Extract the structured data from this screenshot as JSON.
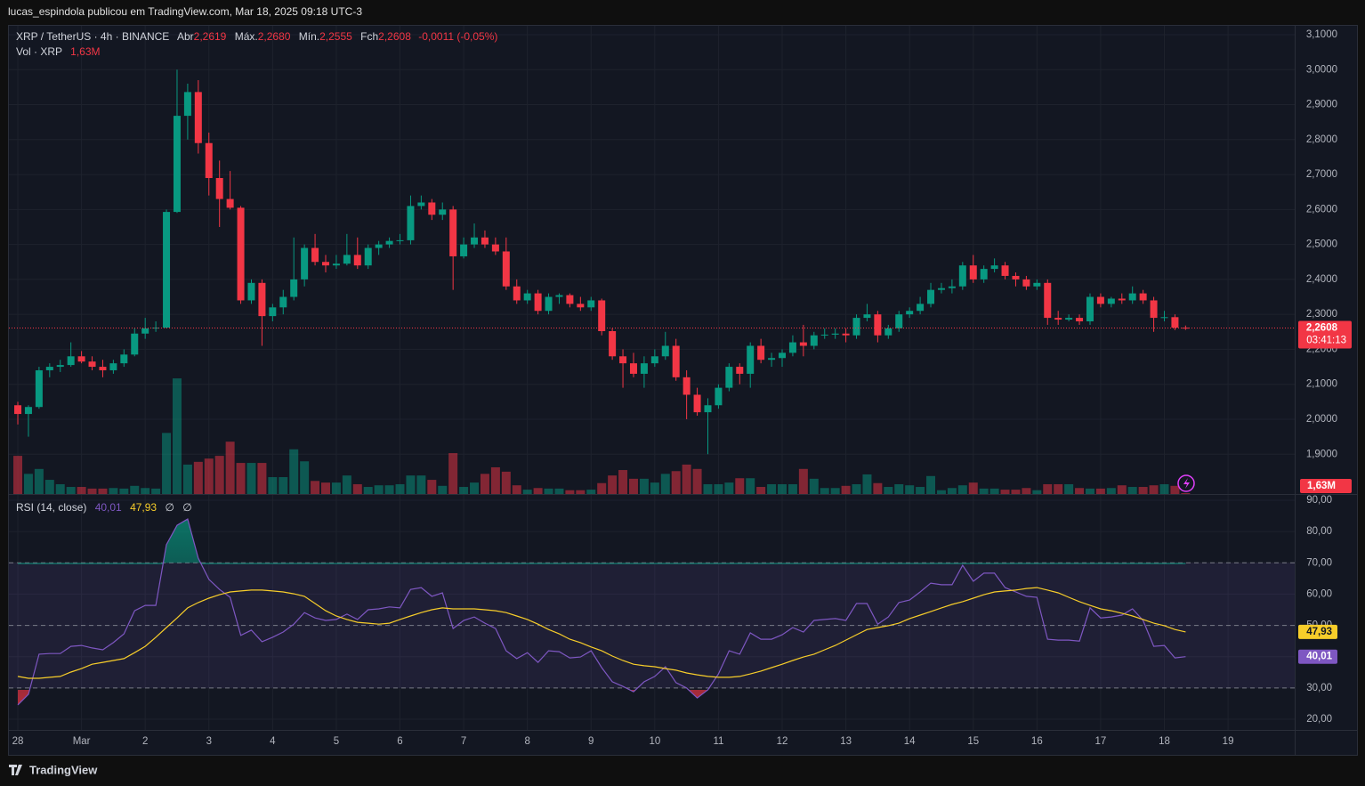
{
  "header": {
    "text": "lucas_espindola publicou em TradingView.com, Mar 18, 2025 09:18 UTC-3",
    "brand": "TradingView"
  },
  "chart_data": [
    {
      "type": "candlestick",
      "title": "XRP / TetherUS · 4h · BINANCE",
      "ohlc_names": [
        "Abr",
        "Máx.",
        "Mín.",
        "Fch"
      ],
      "ohlc_labels": [
        "2,2619",
        "2,2680",
        "2,2555",
        "2,2608"
      ],
      "change_label": "-0,0011 (-0,05%)",
      "countdown": "03:41:13",
      "up_color": "#089981",
      "down_color": "#f23645",
      "ylim": [
        1.786,
        3.128
      ],
      "yticks": [
        {
          "value": 1.9,
          "label": "1,9000"
        },
        {
          "value": 2.0,
          "label": "2,0000"
        },
        {
          "value": 2.1,
          "label": "2,1000"
        },
        {
          "value": 2.2,
          "label": "2,2000"
        },
        {
          "value": 2.3,
          "label": "2,3000"
        },
        {
          "value": 2.4,
          "label": "2,4000"
        },
        {
          "value": 2.5,
          "label": "2,5000"
        },
        {
          "value": 2.6,
          "label": "2,6000"
        },
        {
          "value": 2.7,
          "label": "2,7000"
        },
        {
          "value": 2.8,
          "label": "2,8000"
        },
        {
          "value": 2.9,
          "label": "2,9000"
        },
        {
          "value": 3.0,
          "label": "3,0000"
        },
        {
          "value": 3.1,
          "label": "3,1000"
        }
      ],
      "xlim": [
        -0.84,
        120.28
      ],
      "xticks": [
        {
          "value": 0,
          "label": "28"
        },
        {
          "value": 6,
          "label": "Mar"
        },
        {
          "value": 12,
          "label": "2"
        },
        {
          "value": 18,
          "label": "3"
        },
        {
          "value": 24,
          "label": "4"
        },
        {
          "value": 30,
          "label": "5"
        },
        {
          "value": 36,
          "label": "6"
        },
        {
          "value": 42,
          "label": "7"
        },
        {
          "value": 48,
          "label": "8"
        },
        {
          "value": 54,
          "label": "9"
        },
        {
          "value": 60,
          "label": "10"
        },
        {
          "value": 66,
          "label": "11"
        },
        {
          "value": 72,
          "label": "12"
        },
        {
          "value": 78,
          "label": "13"
        },
        {
          "value": 84,
          "label": "14"
        },
        {
          "value": 90,
          "label": "15"
        },
        {
          "value": 96,
          "label": "16"
        },
        {
          "value": 102,
          "label": "17"
        },
        {
          "value": 108,
          "label": "18"
        },
        {
          "value": 114,
          "label": "19"
        }
      ],
      "candles": [
        [
          2.04,
          2.05,
          1.985,
          2.015
        ],
        [
          2.015,
          2.04,
          1.95,
          2.035
        ],
        [
          2.035,
          2.15,
          2.03,
          2.14
        ],
        [
          2.14,
          2.16,
          2.12,
          2.15
        ],
        [
          2.15,
          2.17,
          2.135,
          2.155
        ],
        [
          2.155,
          2.22,
          2.15,
          2.18
        ],
        [
          2.18,
          2.195,
          2.16,
          2.165
        ],
        [
          2.165,
          2.18,
          2.14,
          2.15
        ],
        [
          2.15,
          2.17,
          2.12,
          2.14
        ],
        [
          2.14,
          2.17,
          2.13,
          2.16
        ],
        [
          2.16,
          2.2,
          2.15,
          2.185
        ],
        [
          2.185,
          2.26,
          2.18,
          2.245
        ],
        [
          2.245,
          2.29,
          2.23,
          2.26
        ],
        [
          2.26,
          2.28,
          2.25,
          2.262
        ],
        [
          2.262,
          2.6,
          2.26,
          2.593
        ],
        [
          2.593,
          3.0,
          2.59,
          2.868
        ],
        [
          2.868,
          2.96,
          2.8,
          2.936
        ],
        [
          2.936,
          2.97,
          2.76,
          2.79
        ],
        [
          2.79,
          2.82,
          2.64,
          2.69
        ],
        [
          2.69,
          2.74,
          2.55,
          2.63
        ],
        [
          2.63,
          2.71,
          2.6,
          2.605
        ],
        [
          2.605,
          2.61,
          2.33,
          2.34
        ],
        [
          2.34,
          2.4,
          2.33,
          2.39
        ],
        [
          2.39,
          2.4,
          2.21,
          2.295
        ],
        [
          2.295,
          2.33,
          2.28,
          2.32
        ],
        [
          2.32,
          2.37,
          2.3,
          2.35
        ],
        [
          2.35,
          2.52,
          2.34,
          2.4
        ],
        [
          2.4,
          2.5,
          2.38,
          2.49
        ],
        [
          2.49,
          2.53,
          2.44,
          2.45
        ],
        [
          2.45,
          2.47,
          2.42,
          2.44
        ],
        [
          2.44,
          2.47,
          2.43,
          2.445
        ],
        [
          2.445,
          2.53,
          2.44,
          2.47
        ],
        [
          2.47,
          2.52,
          2.43,
          2.44
        ],
        [
          2.44,
          2.5,
          2.43,
          2.49
        ],
        [
          2.49,
          2.51,
          2.47,
          2.5
        ],
        [
          2.5,
          2.52,
          2.49,
          2.51
        ],
        [
          2.51,
          2.53,
          2.5,
          2.512
        ],
        [
          2.512,
          2.64,
          2.5,
          2.61
        ],
        [
          2.61,
          2.64,
          2.6,
          2.62
        ],
        [
          2.62,
          2.63,
          2.57,
          2.585
        ],
        [
          2.585,
          2.62,
          2.57,
          2.6
        ],
        [
          2.6,
          2.61,
          2.37,
          2.466
        ],
        [
          2.466,
          2.52,
          2.46,
          2.5
        ],
        [
          2.5,
          2.56,
          2.49,
          2.52
        ],
        [
          2.52,
          2.54,
          2.49,
          2.5
        ],
        [
          2.5,
          2.52,
          2.47,
          2.48
        ],
        [
          2.48,
          2.52,
          2.37,
          2.38
        ],
        [
          2.38,
          2.4,
          2.33,
          2.34
        ],
        [
          2.34,
          2.37,
          2.33,
          2.36
        ],
        [
          2.36,
          2.37,
          2.3,
          2.31
        ],
        [
          2.31,
          2.36,
          2.3,
          2.35
        ],
        [
          2.35,
          2.36,
          2.33,
          2.355
        ],
        [
          2.355,
          2.36,
          2.32,
          2.33
        ],
        [
          2.33,
          2.35,
          2.31,
          2.32
        ],
        [
          2.32,
          2.35,
          2.31,
          2.34
        ],
        [
          2.34,
          2.345,
          2.24,
          2.252
        ],
        [
          2.252,
          2.26,
          2.17,
          2.18
        ],
        [
          2.18,
          2.2,
          2.09,
          2.16
        ],
        [
          2.16,
          2.19,
          2.12,
          2.13
        ],
        [
          2.13,
          2.18,
          2.09,
          2.16
        ],
        [
          2.16,
          2.2,
          2.15,
          2.18
        ],
        [
          2.18,
          2.25,
          2.17,
          2.21
        ],
        [
          2.21,
          2.23,
          2.11,
          2.12
        ],
        [
          2.12,
          2.14,
          2.0,
          2.07
        ],
        [
          2.07,
          2.09,
          2.01,
          2.02
        ],
        [
          2.02,
          2.06,
          1.9,
          2.04
        ],
        [
          2.04,
          2.1,
          2.03,
          2.09
        ],
        [
          2.09,
          2.16,
          2.08,
          2.15
        ],
        [
          2.15,
          2.16,
          2.1,
          2.13
        ],
        [
          2.13,
          2.22,
          2.09,
          2.21
        ],
        [
          2.21,
          2.23,
          2.16,
          2.17
        ],
        [
          2.17,
          2.19,
          2.15,
          2.175
        ],
        [
          2.175,
          2.2,
          2.15,
          2.19
        ],
        [
          2.19,
          2.24,
          2.18,
          2.22
        ],
        [
          2.22,
          2.27,
          2.18,
          2.21
        ],
        [
          2.21,
          2.25,
          2.2,
          2.24
        ],
        [
          2.24,
          2.26,
          2.23,
          2.242
        ],
        [
          2.242,
          2.26,
          2.23,
          2.245
        ],
        [
          2.245,
          2.26,
          2.22,
          2.24
        ],
        [
          2.24,
          2.3,
          2.23,
          2.29
        ],
        [
          2.29,
          2.33,
          2.28,
          2.3
        ],
        [
          2.3,
          2.31,
          2.22,
          2.24
        ],
        [
          2.24,
          2.27,
          2.23,
          2.26
        ],
        [
          2.26,
          2.31,
          2.25,
          2.3
        ],
        [
          2.3,
          2.32,
          2.29,
          2.31
        ],
        [
          2.31,
          2.35,
          2.3,
          2.33
        ],
        [
          2.33,
          2.39,
          2.32,
          2.37
        ],
        [
          2.37,
          2.39,
          2.36,
          2.375
        ],
        [
          2.375,
          2.4,
          2.36,
          2.38
        ],
        [
          2.38,
          2.45,
          2.37,
          2.44
        ],
        [
          2.44,
          2.47,
          2.39,
          2.4
        ],
        [
          2.4,
          2.44,
          2.39,
          2.43
        ],
        [
          2.43,
          2.46,
          2.42,
          2.44
        ],
        [
          2.44,
          2.45,
          2.4,
          2.41
        ],
        [
          2.41,
          2.42,
          2.38,
          2.4
        ],
        [
          2.4,
          2.41,
          2.37,
          2.38
        ],
        [
          2.38,
          2.4,
          2.37,
          2.39
        ],
        [
          2.39,
          2.4,
          2.27,
          2.29
        ],
        [
          2.29,
          2.31,
          2.27,
          2.285
        ],
        [
          2.285,
          2.3,
          2.28,
          2.29
        ],
        [
          2.29,
          2.3,
          2.27,
          2.28
        ],
        [
          2.28,
          2.36,
          2.27,
          2.35
        ],
        [
          2.35,
          2.36,
          2.32,
          2.33
        ],
        [
          2.33,
          2.35,
          2.32,
          2.345
        ],
        [
          2.345,
          2.36,
          2.33,
          2.34
        ],
        [
          2.34,
          2.38,
          2.33,
          2.36
        ],
        [
          2.36,
          2.37,
          2.33,
          2.34
        ],
        [
          2.34,
          2.35,
          2.25,
          2.29
        ],
        [
          2.29,
          2.31,
          2.28,
          2.292
        ],
        [
          2.292,
          2.3,
          2.255,
          2.262
        ],
        [
          2.2619,
          2.268,
          2.2555,
          2.2608
        ]
      ]
    },
    {
      "type": "bar",
      "title": "Vol · XRP",
      "current_label": "1,63M",
      "ylim": [
        0,
        860
      ],
      "values": [
        70,
        37,
        46,
        26,
        18,
        13,
        13,
        10,
        10,
        11,
        10,
        15,
        11,
        10,
        112,
        212,
        54,
        59,
        65,
        70,
        96,
        57,
        57,
        57,
        31,
        31,
        82,
        60,
        24,
        21,
        21,
        34,
        18,
        13,
        16,
        16,
        18,
        34,
        34,
        26,
        15,
        75,
        13,
        21,
        37,
        49,
        41,
        16,
        8,
        11,
        10,
        10,
        7,
        7,
        8,
        20,
        34,
        44,
        28,
        28,
        21,
        37,
        42,
        54,
        46,
        18,
        18,
        21,
        29,
        29,
        13,
        18,
        18,
        18,
        46,
        28,
        11,
        11,
        15,
        18,
        36,
        20,
        13,
        18,
        16,
        13,
        33,
        7,
        11,
        16,
        21,
        10,
        10,
        8,
        8,
        11,
        7,
        18,
        18,
        18,
        11,
        10,
        10,
        11,
        16,
        13,
        13,
        16,
        18,
        15,
        1.63
      ]
    },
    {
      "type": "line",
      "title": "RSI (14, close)",
      "extras": [
        "∅",
        "∅"
      ],
      "ylim": [
        16.6,
        91.7
      ],
      "yticks": [
        {
          "value": 20,
          "label": "20,00"
        },
        {
          "value": 30,
          "label": "30,00"
        },
        {
          "value": 40,
          "label": "40,00"
        },
        {
          "value": 50,
          "label": "50,00"
        },
        {
          "value": 60,
          "label": "60,00"
        },
        {
          "value": 70,
          "label": "70,00"
        },
        {
          "value": 80,
          "label": "80,00"
        },
        {
          "value": 90,
          "label": "90,00"
        }
      ],
      "bands": [
        30,
        50,
        70
      ],
      "band_color": "#7e57c2",
      "series": [
        {
          "color": "#7e57c2",
          "label": "40,01",
          "values": [
            24.6,
            28,
            40.8,
            41,
            41,
            43.3,
            43.6,
            42.8,
            42.2,
            44.5,
            47.3,
            54.7,
            56.4,
            56.4,
            75.8,
            82,
            84,
            71.5,
            64.7,
            61.5,
            59,
            46.8,
            48.5,
            44.8,
            46.2,
            47.9,
            50.4,
            54.1,
            52.4,
            51.6,
            51.9,
            53.6,
            51.9,
            55,
            55.3,
            55.9,
            55.6,
            61.5,
            62.1,
            59.3,
            60.4,
            49,
            51.6,
            52.7,
            50.7,
            49,
            41.9,
            39.4,
            41.3,
            38.2,
            41.9,
            41.6,
            39.6,
            39.9,
            41.9,
            36.5,
            32,
            30.5,
            28.8,
            32,
            33.7,
            36.8,
            31.7,
            30,
            26.8,
            29.4,
            34.5,
            41.9,
            40.8,
            47.6,
            45.6,
            45.6,
            47,
            49.3,
            47.9,
            51.6,
            51.9,
            52.2,
            51.6,
            57,
            57,
            50.4,
            52.7,
            57.3,
            58.1,
            60.7,
            63.5,
            63,
            63,
            69.2,
            64.1,
            66.7,
            66.7,
            62.1,
            60.7,
            59.3,
            59,
            45.6,
            45.3,
            45.3,
            45,
            55.6,
            52.4,
            52.7,
            53.3,
            55.3,
            51.6,
            43.3,
            43.6,
            39.6,
            40.01
          ]
        },
        {
          "color": "#f7cd2a",
          "label": "47,93",
          "values": [
            33.7,
            33.1,
            33.1,
            33.4,
            33.7,
            35.1,
            36.2,
            37.6,
            38.2,
            38.8,
            39.4,
            41.3,
            43.3,
            46.2,
            49.3,
            52.4,
            55.6,
            57.3,
            58.7,
            59.8,
            60.7,
            61,
            61.3,
            61.3,
            61,
            60.7,
            60.1,
            59.3,
            57,
            54.7,
            53,
            51.9,
            51,
            50.7,
            50.4,
            50.7,
            51.9,
            53,
            54.1,
            55,
            55.6,
            55.3,
            55.3,
            55.3,
            55,
            54.7,
            54.1,
            53,
            51.9,
            50.4,
            48.7,
            47.3,
            45.6,
            44.5,
            43.1,
            41.9,
            40.2,
            38.8,
            37.6,
            37.1,
            36.8,
            36.2,
            35.7,
            34.8,
            34.2,
            33.7,
            33.4,
            33.4,
            33.7,
            34.5,
            35.4,
            36.5,
            37.6,
            38.8,
            39.9,
            40.8,
            42.2,
            43.6,
            45.3,
            47,
            48.7,
            49.3,
            49.9,
            50.7,
            52.2,
            53.3,
            54.4,
            55.6,
            56.7,
            57.6,
            58.7,
            59.8,
            60.7,
            61,
            61.3,
            61.8,
            62.1,
            61.3,
            60.4,
            59,
            57.6,
            56.4,
            55.3,
            54.7,
            53.9,
            53,
            51.9,
            50.7,
            49.9,
            48.7,
            47.93
          ]
        }
      ]
    }
  ]
}
